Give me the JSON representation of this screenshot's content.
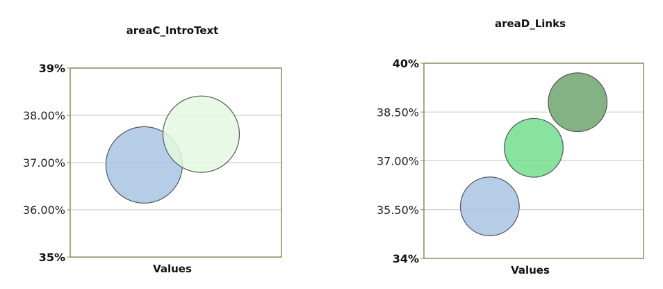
{
  "chart_data": [
    {
      "type": "scatter",
      "title": "areaC_IntroText",
      "xlabel": "Values",
      "ylabel": "",
      "ylim": [
        35,
        39
      ],
      "y_ticks": [
        {
          "value": 35,
          "label": "35%"
        },
        {
          "value": 36,
          "label": "36.00%"
        },
        {
          "value": 37,
          "label": "37.00%"
        },
        {
          "value": 38,
          "label": "38.00%"
        },
        {
          "value": 39,
          "label": "39%"
        }
      ],
      "grid": true,
      "legend": "none",
      "series": [
        {
          "x": 0.35,
          "y": 36.95,
          "size": 1.0,
          "color": "#a9c4e4"
        },
        {
          "x": 0.62,
          "y": 37.6,
          "size": 1.0,
          "color": "#e4f9e0"
        }
      ]
    },
    {
      "type": "scatter",
      "title": "areaD_Links",
      "xlabel": "Values",
      "ylabel": "",
      "ylim": [
        34,
        40
      ],
      "y_ticks": [
        {
          "value": 34,
          "label": "34%"
        },
        {
          "value": 35.5,
          "label": "35.50%"
        },
        {
          "value": 37,
          "label": "37.00%"
        },
        {
          "value": 38.5,
          "label": "38.50%"
        },
        {
          "value": 40,
          "label": "40%"
        }
      ],
      "grid": true,
      "legend": "none",
      "series": [
        {
          "x": 0.3,
          "y": 35.6,
          "size": 0.92,
          "color": "#a9c4e4"
        },
        {
          "x": 0.5,
          "y": 37.4,
          "size": 0.92,
          "color": "#72de8c"
        },
        {
          "x": 0.7,
          "y": 38.8,
          "size": 0.92,
          "color": "#6ea46e"
        }
      ]
    }
  ]
}
